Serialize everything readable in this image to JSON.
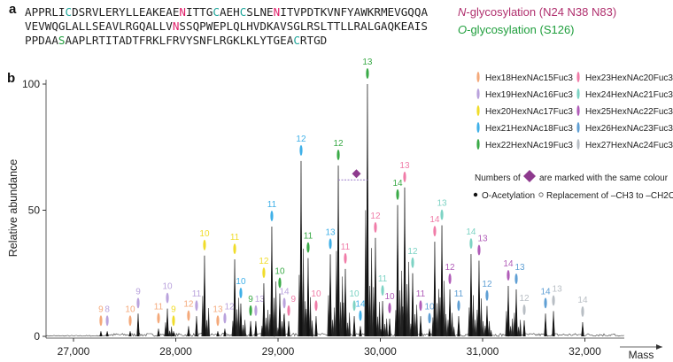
{
  "panel_a": {
    "letter": "a",
    "sequence_lines": [
      [
        {
          "t": "APPRLI"
        },
        {
          "t": "C",
          "c": "#1fa59a"
        },
        {
          "t": "DSRVLERYLLEAKEAE"
        },
        {
          "t": "N",
          "c": "#e0206a"
        },
        {
          "t": "ITTG"
        },
        {
          "t": "C",
          "c": "#1fa59a"
        },
        {
          "t": "AEH"
        },
        {
          "t": "C",
          "c": "#1fa59a"
        },
        {
          "t": "SLNE"
        },
        {
          "t": "N",
          "c": "#e0206a"
        },
        {
          "t": "ITVPDTKVNFYAWKRMEVGQQA"
        }
      ],
      [
        {
          "t": "VEVWQGLALLSEAVLRGQALLV"
        },
        {
          "t": "N",
          "c": "#e0206a"
        },
        {
          "t": "SSQPWEPLQLHVDKAVSGLRSLTTLLRALGAQKEAIS"
        }
      ],
      [
        {
          "t": "PPDAA"
        },
        {
          "t": "S",
          "c": "#1e9e3c"
        },
        {
          "t": "AAPLRTITADTFRKLFRVYSNFLRGKLKLYTGEA"
        },
        {
          "t": "C",
          "c": "#1fa59a"
        },
        {
          "t": "RTGD"
        }
      ]
    ],
    "n_glyco": {
      "prefix": "N",
      "text": "-glycosylation (N24 N38 N83)",
      "color": "#b0306e"
    },
    "o_glyco": {
      "prefix": "O",
      "text": "-glycosylation (S126)",
      "color": "#1e9e3c"
    }
  },
  "panel_b": {
    "letter": "b"
  },
  "legend": {
    "items": [
      {
        "label": "Hex18HexNAc15Fuc3",
        "color": "#f4a97a"
      },
      {
        "label": "Hex19HexNAc16Fuc3",
        "color": "#b9a2dc"
      },
      {
        "label": "Hex20HexNAc17Fuc3",
        "color": "#f0dc2a"
      },
      {
        "label": "Hex21HexNAc18Fuc3",
        "color": "#3fb0e8"
      },
      {
        "label": "Hex22HexNAc19Fuc3",
        "color": "#3aaa47"
      },
      {
        "label": "Hex23HexNAc20Fuc3",
        "color": "#f07ca8"
      },
      {
        "label": "Hex24HexNAc21Fuc3",
        "color": "#7dd3c4"
      },
      {
        "label": "Hex25HexNAc22Fuc3",
        "color": "#b05cb8"
      },
      {
        "label": "Hex26HexNAc23Fuc3",
        "color": "#5f9fd4"
      },
      {
        "label": "Hex27HexNAc24Fuc3",
        "color": "#b8bec4"
      }
    ],
    "numbers_note_pre": "Numbers of",
    "numbers_note_post": "are marked with the same colour",
    "diamond_color": "#8e3a8e",
    "acetylation": "O-Acetylation",
    "replacement": "Replacement of –CH3 to –CH2OH"
  },
  "chart_data": {
    "type": "line",
    "xlabel": "Mass",
    "ylabel": "Relative abundance",
    "xlim": [
      26600,
      32700
    ],
    "ylim": [
      0,
      100
    ],
    "xticks": [
      27000,
      28000,
      29000,
      30000,
      31000,
      32000
    ],
    "xtick_labels": [
      "27,000",
      "28,000",
      "29,000",
      "30,000",
      "31,000",
      "32,000"
    ],
    "yticks": [
      0,
      50,
      100
    ],
    "ytick_labels": [
      "0",
      "50",
      "100"
    ],
    "grid": false,
    "peaks": [
      {
        "mass": 27268,
        "y": 2,
        "label": "9",
        "glycoform": 0
      },
      {
        "mass": 27330,
        "y": 2,
        "label": "8",
        "glycoform": 1
      },
      {
        "mass": 27554,
        "y": 2,
        "label": "10",
        "glycoform": 0
      },
      {
        "mass": 27632,
        "y": 9,
        "label": "9",
        "glycoform": 1
      },
      {
        "mass": 27831,
        "y": 3,
        "label": "11",
        "glycoform": 0
      },
      {
        "mass": 27918,
        "y": 11,
        "label": "10",
        "glycoform": 1
      },
      {
        "mass": 27978,
        "y": 2,
        "label": "9",
        "glycoform": 2
      },
      {
        "mass": 28125,
        "y": 4,
        "label": "12",
        "glycoform": 0
      },
      {
        "mass": 28203,
        "y": 8,
        "label": "11",
        "glycoform": 1
      },
      {
        "mass": 28281,
        "y": 32,
        "label": "10",
        "glycoform": 2
      },
      {
        "mass": 28411,
        "y": 2,
        "label": "13",
        "glycoform": 0
      },
      {
        "mass": 28480,
        "y": 3,
        "label": "12",
        "glycoform": 1
      },
      {
        "mass": 28576,
        "y": 30.5,
        "label": "11",
        "glycoform": 2
      },
      {
        "mass": 28636,
        "y": 13,
        "label": "10",
        "glycoform": 3
      },
      {
        "mass": 28732,
        "y": 6,
        "label": "9",
        "glycoform": 4
      },
      {
        "mass": 28783,
        "y": 6,
        "label": "13",
        "glycoform": 1
      },
      {
        "mass": 28861,
        "y": 21,
        "label": "12",
        "glycoform": 2
      },
      {
        "mass": 28939,
        "y": 43.5,
        "label": "11",
        "glycoform": 3
      },
      {
        "mass": 29017,
        "y": 17,
        "label": "10",
        "glycoform": 4
      },
      {
        "mass": 29061,
        "y": 9,
        "label": "14",
        "glycoform": 1
      },
      {
        "mass": 29104,
        "y": 6,
        "label": "9",
        "glycoform": 5
      },
      {
        "mass": 29225,
        "y": 69.5,
        "label": "12",
        "glycoform": 3
      },
      {
        "mass": 29294,
        "y": 31,
        "label": "11",
        "glycoform": 4
      },
      {
        "mass": 29372,
        "y": 8,
        "label": "10",
        "glycoform": 5
      },
      {
        "mass": 29511,
        "y": 32.5,
        "label": "13",
        "glycoform": 3
      },
      {
        "mass": 29589,
        "y": 67.7,
        "label": "12",
        "glycoform": 4
      },
      {
        "mass": 29658,
        "y": 26.7,
        "label": "11",
        "glycoform": 5
      },
      {
        "mass": 29745,
        "y": 8,
        "label": "10",
        "glycoform": 6
      },
      {
        "mass": 29805,
        "y": 4,
        "label": "14",
        "glycoform": 3
      },
      {
        "mass": 29874,
        "y": 100,
        "label": "13",
        "glycoform": 4
      },
      {
        "mass": 29952,
        "y": 39,
        "label": "12",
        "glycoform": 5
      },
      {
        "mass": 30022,
        "y": 14,
        "label": "11",
        "glycoform": 6
      },
      {
        "mass": 30091,
        "y": 7,
        "label": "10",
        "glycoform": 7
      },
      {
        "mass": 30169,
        "y": 52,
        "label": "14",
        "glycoform": 4
      },
      {
        "mass": 30238,
        "y": 59,
        "label": "13",
        "glycoform": 5
      },
      {
        "mass": 30316,
        "y": 25,
        "label": "12",
        "glycoform": 6
      },
      {
        "mass": 30394,
        "y": 8,
        "label": "11",
        "glycoform": 7
      },
      {
        "mass": 30481,
        "y": 3,
        "label": "10",
        "glycoform": 8
      },
      {
        "mass": 30532,
        "y": 37.5,
        "label": "14",
        "glycoform": 5
      },
      {
        "mass": 30602,
        "y": 44,
        "label": "13",
        "glycoform": 6
      },
      {
        "mass": 30680,
        "y": 18.6,
        "label": "12",
        "glycoform": 7
      },
      {
        "mass": 30766,
        "y": 8,
        "label": "11",
        "glycoform": 8
      },
      {
        "mass": 30887,
        "y": 32.6,
        "label": "14",
        "glycoform": 6
      },
      {
        "mass": 30965,
        "y": 30,
        "label": "13",
        "glycoform": 7
      },
      {
        "mass": 31043,
        "y": 12,
        "label": "12",
        "glycoform": 8
      },
      {
        "mass": 31251,
        "y": 20,
        "label": "14",
        "glycoform": 7
      },
      {
        "mass": 31329,
        "y": 18.6,
        "label": "13",
        "glycoform": 8
      },
      {
        "mass": 31407,
        "y": 6.3,
        "label": "12",
        "glycoform": 9
      },
      {
        "mass": 31615,
        "y": 9,
        "label": "14",
        "glycoform": 8
      },
      {
        "mass": 31693,
        "y": 10,
        "label": "13",
        "glycoform": 9
      },
      {
        "mass": 31978,
        "y": 5.6,
        "label": "14",
        "glycoform": 9
      }
    ],
    "diamond_annotation": {
      "from_mass": 29589,
      "to_mass": 29874,
      "y": 62
    }
  }
}
